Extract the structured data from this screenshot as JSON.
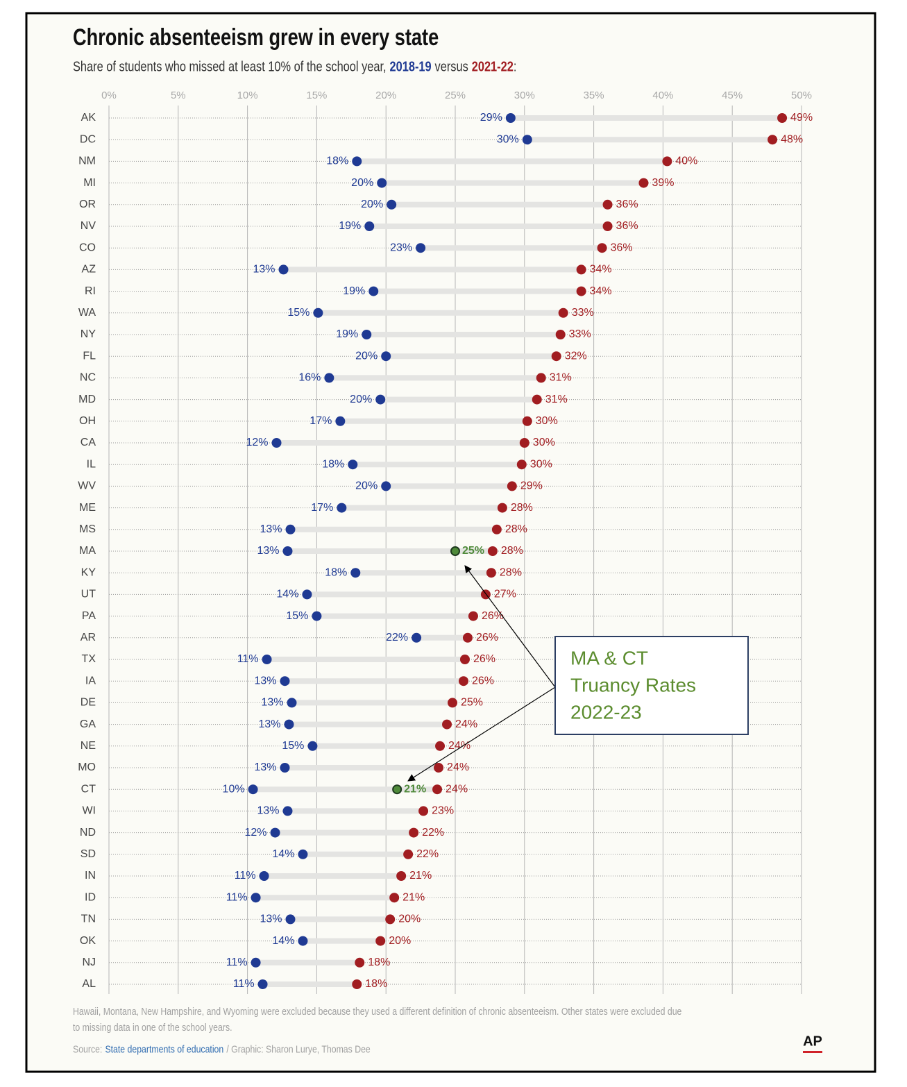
{
  "chart_data": {
    "type": "dumbbell",
    "title": "Chronic absenteeism grew in every state",
    "subtitle": {
      "prefix": "Share of students who missed at least 10% of the school year,",
      "middle": "versus",
      "suffix": ":"
    },
    "categories": [
      "AK",
      "DC",
      "NM",
      "MI",
      "OR",
      "NV",
      "CO",
      "AZ",
      "RI",
      "WA",
      "NY",
      "FL",
      "NC",
      "MD",
      "OH",
      "CA",
      "IL",
      "WV",
      "ME",
      "MS",
      "MA",
      "KY",
      "UT",
      "PA",
      "AR",
      "TX",
      "IA",
      "DE",
      "GA",
      "NE",
      "MO",
      "CT",
      "WI",
      "ND",
      "SD",
      "IN",
      "ID",
      "TN",
      "OK",
      "NJ",
      "AL"
    ],
    "series": [
      {
        "name": "2018-19",
        "color": "#1f3a93",
        "values": [
          29.0,
          30.2,
          17.9,
          19.7,
          20.4,
          18.8,
          22.5,
          12.6,
          19.1,
          15.1,
          18.6,
          20.0,
          15.9,
          19.6,
          16.7,
          12.1,
          17.6,
          20.0,
          16.8,
          13.1,
          12.9,
          17.8,
          14.3,
          15.0,
          22.2,
          11.4,
          12.7,
          13.2,
          13.0,
          14.7,
          12.7,
          10.4,
          12.9,
          12.0,
          14.0,
          11.2,
          10.6,
          13.1,
          14.0,
          10.6,
          11.1
        ],
        "value_labels": [
          "29%",
          "30%",
          "18%",
          "20%",
          "20%",
          "19%",
          "23%",
          "13%",
          "19%",
          "15%",
          "19%",
          "20%",
          "16%",
          "20%",
          "17%",
          "12%",
          "18%",
          "20%",
          "17%",
          "13%",
          "13%",
          "18%",
          "14%",
          "15%",
          "22%",
          "11%",
          "13%",
          "13%",
          "13%",
          "15%",
          "13%",
          "10%",
          "13%",
          "12%",
          "14%",
          "11%",
          "11%",
          "13%",
          "14%",
          "11%",
          "11%"
        ]
      },
      {
        "name": "2021-22",
        "color": "#a11d21",
        "values": [
          48.6,
          47.9,
          40.3,
          38.6,
          36.0,
          36.0,
          35.6,
          34.1,
          34.1,
          32.8,
          32.6,
          32.3,
          31.2,
          30.9,
          30.2,
          30.0,
          29.8,
          29.1,
          28.4,
          28.0,
          27.7,
          27.6,
          27.2,
          26.3,
          25.9,
          25.7,
          25.6,
          24.8,
          24.4,
          23.9,
          23.8,
          23.7,
          22.7,
          22.0,
          21.6,
          21.1,
          20.6,
          20.3,
          19.6,
          18.1,
          17.9
        ],
        "value_labels": [
          "49%",
          "48%",
          "40%",
          "39%",
          "36%",
          "36%",
          "36%",
          "34%",
          "34%",
          "33%",
          "33%",
          "32%",
          "31%",
          "31%",
          "30%",
          "30%",
          "30%",
          "29%",
          "28%",
          "28%",
          "28%",
          "28%",
          "27%",
          "26%",
          "26%",
          "26%",
          "26%",
          "25%",
          "24%",
          "24%",
          "24%",
          "24%",
          "23%",
          "22%",
          "22%",
          "21%",
          "21%",
          "20%",
          "20%",
          "18%",
          "18%"
        ]
      },
      {
        "color": "#4f8a3a",
        "values": [
          null,
          null,
          null,
          null,
          null,
          null,
          null,
          null,
          null,
          null,
          null,
          null,
          null,
          null,
          null,
          null,
          null,
          null,
          null,
          null,
          25,
          null,
          null,
          null,
          null,
          null,
          null,
          null,
          null,
          null,
          null,
          20.8,
          null,
          null,
          null,
          null,
          null,
          null,
          null,
          null,
          null
        ],
        "value_labels": [
          null,
          null,
          null,
          null,
          null,
          null,
          null,
          null,
          null,
          null,
          null,
          null,
          null,
          null,
          null,
          null,
          null,
          null,
          null,
          null,
          "25%",
          null,
          null,
          null,
          null,
          null,
          null,
          null,
          null,
          null,
          null,
          "21%",
          null,
          null,
          null,
          null,
          null,
          null,
          null,
          null,
          null
        ]
      }
    ],
    "xlim": [
      0,
      50
    ],
    "xticks": [
      {
        "value": 0,
        "label": "0%"
      },
      {
        "value": 5,
        "label": "5%"
      },
      {
        "value": 10,
        "label": "10%"
      },
      {
        "value": 15,
        "label": "15%"
      },
      {
        "value": 20,
        "label": "20%"
      },
      {
        "value": 25,
        "label": "25%"
      },
      {
        "value": 30,
        "label": "30%"
      },
      {
        "value": 35,
        "label": "35%"
      },
      {
        "value": 40,
        "label": "40%"
      },
      {
        "value": 45,
        "label": "45%"
      },
      {
        "value": 50,
        "label": "50%"
      }
    ],
    "grid": true,
    "annotation": {
      "lines": [
        "MA & CT",
        "Truancy Rates",
        "2022-23"
      ]
    },
    "footnote": [
      "Hawaii, Montana, New Hampshire, and Wyoming were excluded because they used a different definition of chronic absenteeism. Other states were excluded due",
      "to missing data in one of the school years."
    ],
    "source": {
      "label": "Source:",
      "name": "State departments of education",
      "credit": "/ Graphic: Sharon Lurye, Thomas Dee"
    },
    "logo": "AP"
  }
}
